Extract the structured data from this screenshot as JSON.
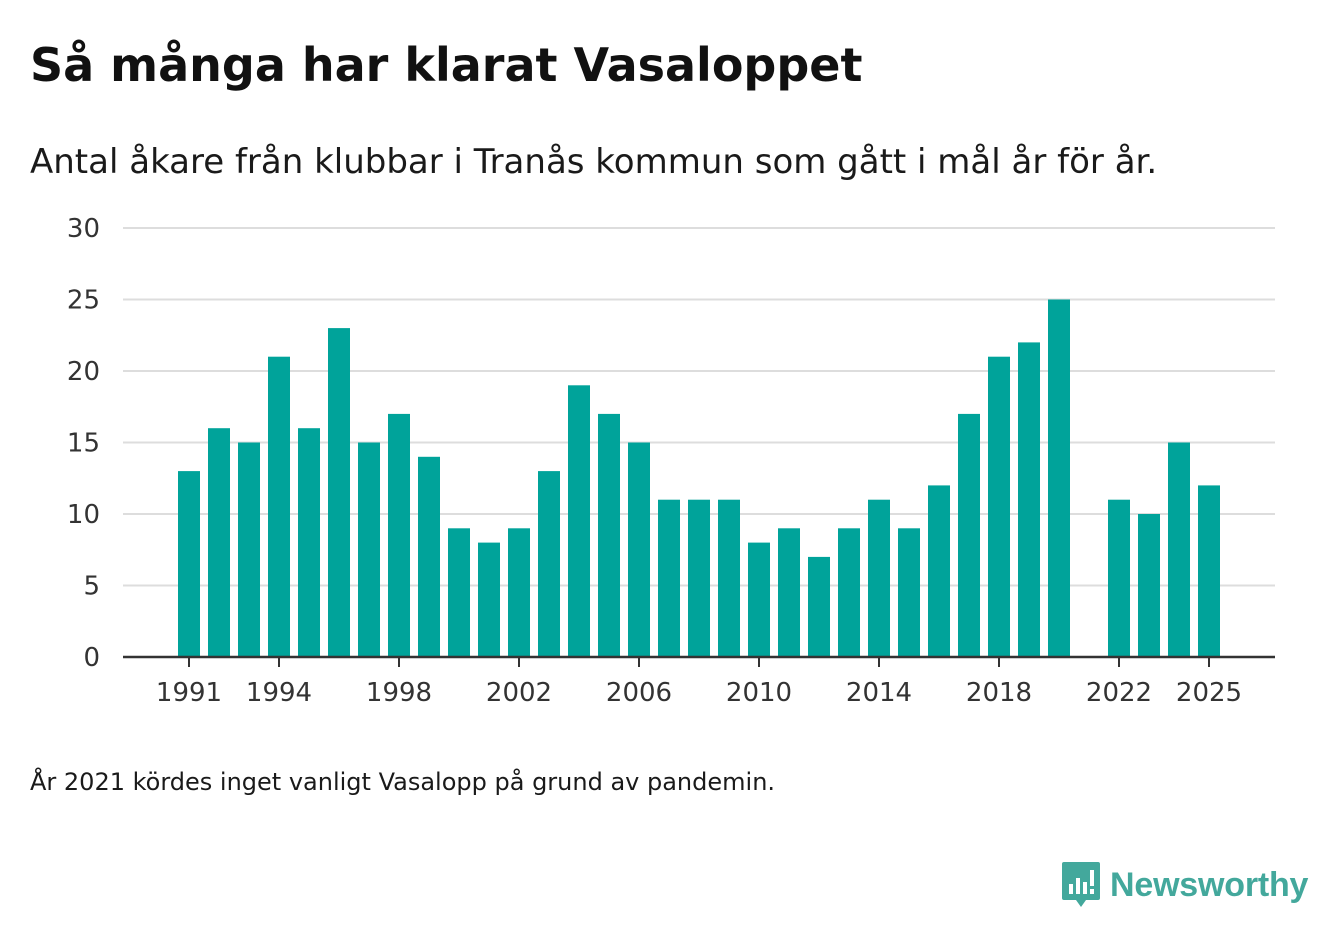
{
  "header": {
    "title": "Så många har klarat Vasaloppet",
    "subtitle": "Antal åkare från klubbar i Tranås kommun som gått i mål år för år."
  },
  "footer": {
    "note": "År 2021 kördes inget vanligt Vasalopp på grund av pandemin.",
    "brand": "Newsworthy",
    "brand_icon": "newsworthy-logo-icon"
  },
  "colors": {
    "bar": "#00a39a",
    "grid": "#dddddd",
    "axis": "#333333",
    "brand": "#43a89c"
  },
  "chart_data": {
    "type": "bar",
    "title": "Så många har klarat Vasaloppet",
    "xlabel": "",
    "ylabel": "",
    "ylim": [
      0,
      30
    ],
    "yticks": [
      0,
      5,
      10,
      15,
      20,
      25,
      30
    ],
    "xticks": [
      1991,
      1994,
      1998,
      2002,
      2006,
      2010,
      2014,
      2018,
      2022,
      2025
    ],
    "grid": true,
    "series": [
      {
        "name": "Antal åkare",
        "points": [
          {
            "year": 1991,
            "value": 13
          },
          {
            "year": 1992,
            "value": 16
          },
          {
            "year": 1993,
            "value": 15
          },
          {
            "year": 1994,
            "value": 21
          },
          {
            "year": 1995,
            "value": 16
          },
          {
            "year": 1996,
            "value": 23
          },
          {
            "year": 1997,
            "value": 15
          },
          {
            "year": 1998,
            "value": 17
          },
          {
            "year": 1999,
            "value": 14
          },
          {
            "year": 2000,
            "value": 9
          },
          {
            "year": 2001,
            "value": 8
          },
          {
            "year": 2002,
            "value": 9
          },
          {
            "year": 2003,
            "value": 13
          },
          {
            "year": 2004,
            "value": 19
          },
          {
            "year": 2005,
            "value": 17
          },
          {
            "year": 2006,
            "value": 15
          },
          {
            "year": 2007,
            "value": 11
          },
          {
            "year": 2008,
            "value": 11
          },
          {
            "year": 2009,
            "value": 11
          },
          {
            "year": 2010,
            "value": 8
          },
          {
            "year": 2011,
            "value": 9
          },
          {
            "year": 2012,
            "value": 7
          },
          {
            "year": 2013,
            "value": 9
          },
          {
            "year": 2014,
            "value": 11
          },
          {
            "year": 2015,
            "value": 9
          },
          {
            "year": 2016,
            "value": 12
          },
          {
            "year": 2017,
            "value": 17
          },
          {
            "year": 2018,
            "value": 21
          },
          {
            "year": 2019,
            "value": 22
          },
          {
            "year": 2020,
            "value": 25
          },
          {
            "year": 2022,
            "value": 11
          },
          {
            "year": 2023,
            "value": 10
          },
          {
            "year": 2024,
            "value": 15
          },
          {
            "year": 2025,
            "value": 12
          }
        ]
      }
    ]
  }
}
